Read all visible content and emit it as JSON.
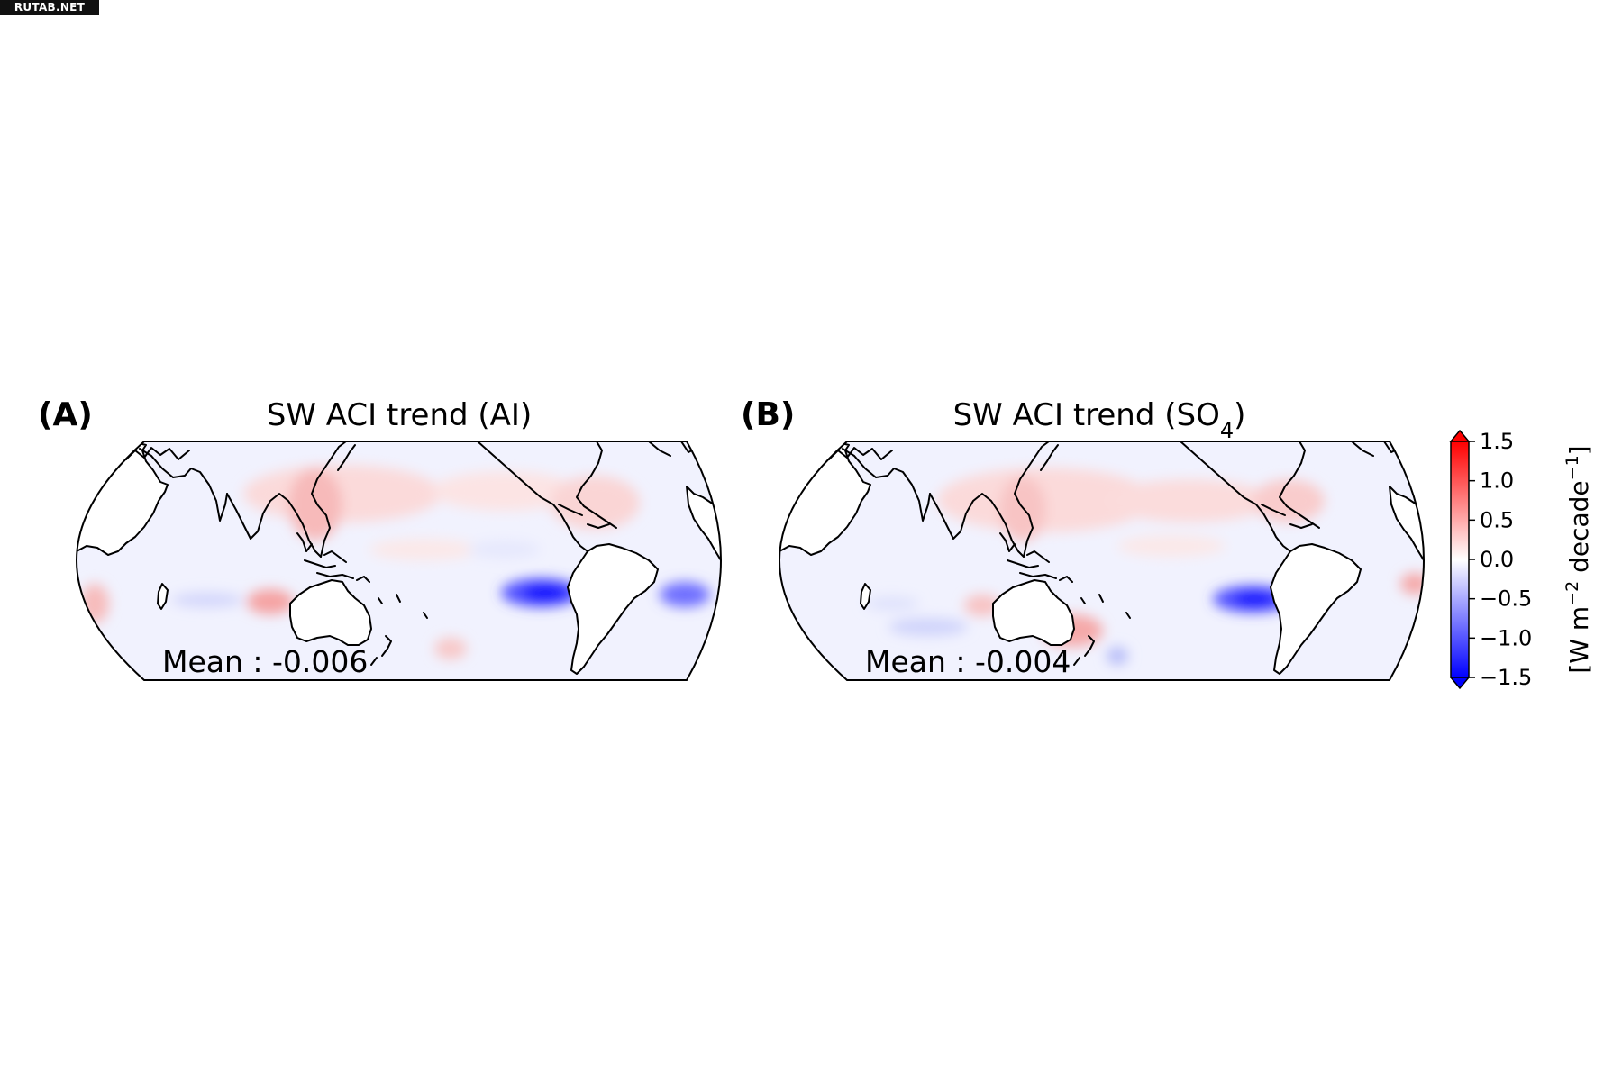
{
  "watermark": "RUTAB.NET",
  "panels": [
    {
      "letter": "(A)",
      "title_main": "SW ACI trend (AI)",
      "title_sub": "",
      "title_end": "",
      "mean_label": "Mean : -0.006"
    },
    {
      "letter": "(B)",
      "title_main": "SW ACI trend (SO",
      "title_sub": "4",
      "title_end": ")",
      "mean_label": "Mean : -0.004"
    }
  ],
  "colorbar": {
    "ticks": [
      "1.5",
      "1.0",
      "0.5",
      "0.0",
      "−0.5",
      "−1.0",
      "−1.5"
    ],
    "tick_values": [
      1.5,
      1.0,
      0.5,
      0.0,
      -0.5,
      -1.0,
      -1.5
    ],
    "range": [
      -1.5,
      1.5
    ],
    "label_main": "[W m",
    "label_sup1": "−2",
    "label_mid": " decade",
    "label_sup2": "−1",
    "label_end": "]",
    "colormap": "bwr",
    "color_min": "#0000ff",
    "color_mid": "#ffffff",
    "color_max": "#ff0000",
    "extend": "both"
  }
}
